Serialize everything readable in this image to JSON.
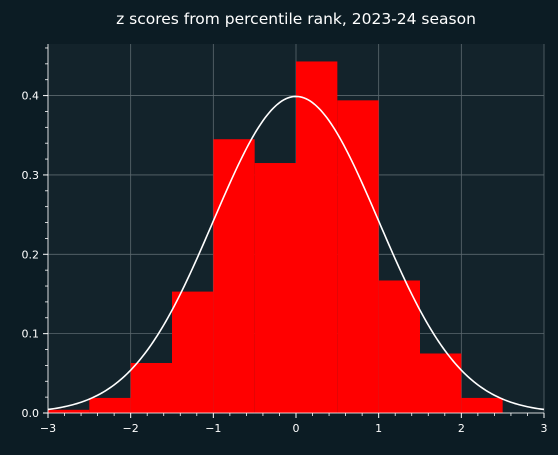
{
  "chart_data": {
    "type": "bar",
    "title": "z scores from percentile rank, 2023-24 season",
    "xlabel": "",
    "ylabel": "",
    "xlim": [
      -3,
      3
    ],
    "ylim": [
      0,
      0.465
    ],
    "grid": true,
    "bin_edges": [
      -3,
      -2.5,
      -2,
      -1.5,
      -1,
      -0.5,
      0,
      0.5,
      1,
      1.5,
      2,
      2.5
    ],
    "values": [
      0.004,
      0.019,
      0.063,
      0.153,
      0.345,
      0.315,
      0.443,
      0.394,
      0.167,
      0.075,
      0.019
    ],
    "bar_color": "#ff0000",
    "x_ticks": [
      -3,
      -2,
      -1,
      0,
      1,
      2,
      3
    ],
    "x_tick_labels": [
      "−3",
      "−2",
      "−1",
      "0",
      "1",
      "2",
      "3"
    ],
    "y_ticks": [
      0.0,
      0.1,
      0.2,
      0.3,
      0.4
    ],
    "y_tick_labels": [
      "0.0",
      "0.1",
      "0.2",
      "0.3",
      "0.4"
    ],
    "curve": {
      "type": "normal-pdf",
      "mean": 0,
      "std": 1,
      "color": "#ffffff"
    }
  },
  "colors": {
    "page_background": "#0c1c24",
    "plot_background": "#13232b",
    "grid": "#5b686e",
    "text": "#ffffff"
  }
}
